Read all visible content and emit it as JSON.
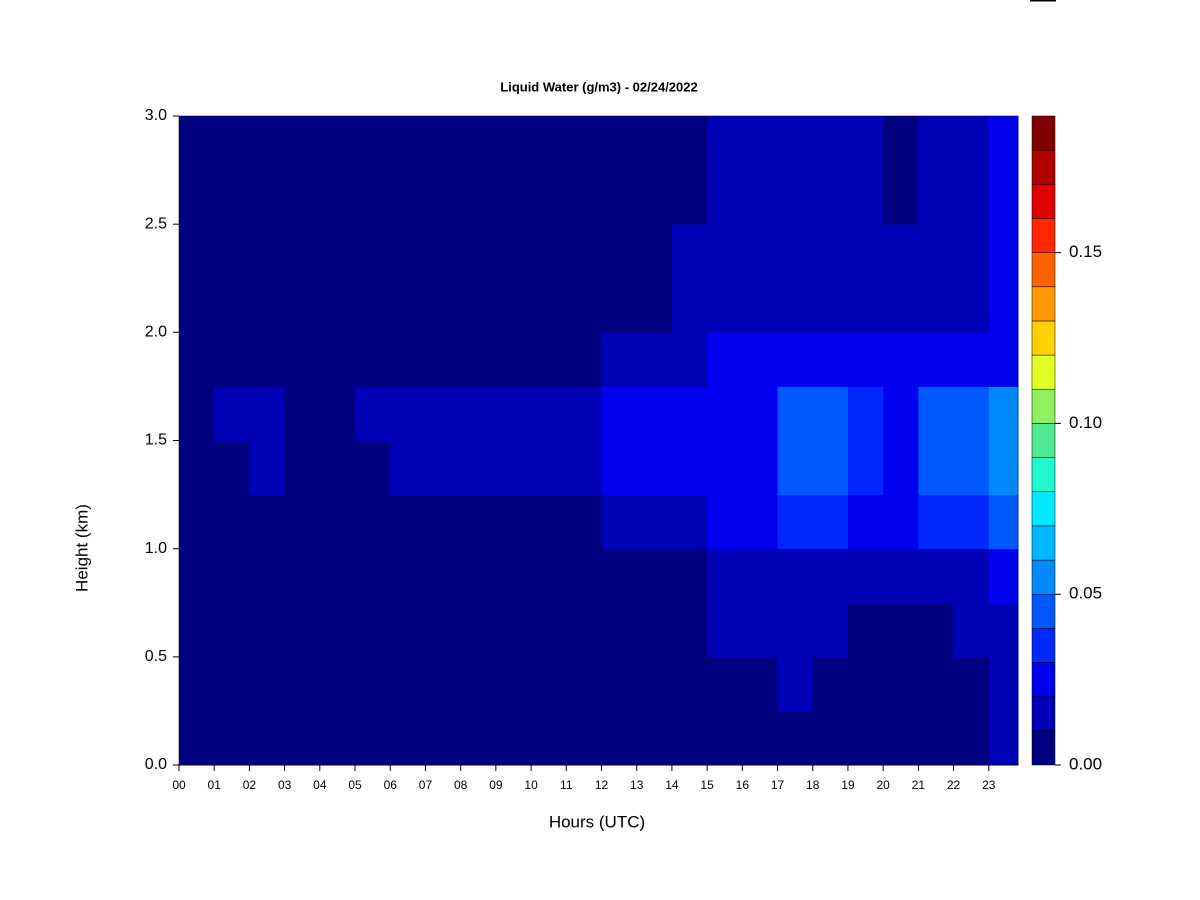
{
  "chart_data": {
    "type": "heatmap",
    "title": "Liquid Water (g/m3) - 02/24/2022",
    "x_label": "Hours (UTC)",
    "y_label": "Height (km)",
    "x": [
      0,
      1,
      2,
      3,
      4,
      5,
      6,
      7,
      8,
      9,
      10,
      11,
      12,
      13,
      14,
      15,
      16,
      17,
      18,
      19,
      20,
      21,
      22,
      23
    ],
    "y": [
      0,
      0.25,
      0.5,
      0.75,
      1,
      1.25,
      1.5,
      1.75,
      2,
      2.25,
      2.5,
      2.75
    ],
    "z": [
      [
        0,
        0,
        0,
        0,
        0,
        0,
        0,
        0,
        0,
        0,
        0,
        0,
        0,
        0,
        0,
        0,
        0,
        0,
        0,
        0,
        0,
        0,
        0,
        0.01
      ],
      [
        0,
        0,
        0,
        0,
        0,
        0,
        0,
        0,
        0,
        0,
        0,
        0,
        0,
        0,
        0,
        0,
        0,
        0.01,
        0,
        0,
        0,
        0,
        0,
        0.015
      ],
      [
        0,
        0,
        0,
        0,
        0,
        0,
        0,
        0,
        0,
        0,
        0,
        0,
        0,
        0,
        0,
        0.01,
        0.01,
        0.012,
        0.01,
        0,
        0,
        0,
        0.01,
        0.015
      ],
      [
        0,
        0,
        0,
        0,
        0,
        0,
        0,
        0,
        0,
        0,
        0,
        0,
        0.005,
        0.005,
        0.008,
        0.012,
        0.012,
        0.015,
        0.015,
        0.01,
        0.01,
        0.012,
        0.015,
        0.02
      ],
      [
        0,
        0,
        0,
        0,
        0,
        0,
        0,
        0,
        0,
        0,
        0,
        0,
        0.015,
        0.015,
        0.018,
        0.022,
        0.02,
        0.035,
        0.035,
        0.025,
        0.022,
        0.03,
        0.035,
        0.045
      ],
      [
        0,
        0.008,
        0.012,
        0.005,
        0.005,
        0.008,
        0.012,
        0.012,
        0.014,
        0.012,
        0.012,
        0.013,
        0.02,
        0.02,
        0.022,
        0.028,
        0.025,
        0.045,
        0.045,
        0.032,
        0.028,
        0.04,
        0.045,
        0.055
      ],
      [
        0,
        0.01,
        0.015,
        0.008,
        0.006,
        0.012,
        0.014,
        0.014,
        0.015,
        0.014,
        0.014,
        0.016,
        0.02,
        0.02,
        0.022,
        0.028,
        0.026,
        0.045,
        0.045,
        0.03,
        0.028,
        0.04,
        0.045,
        0.055
      ],
      [
        0,
        0,
        0,
        0,
        0,
        0,
        0,
        0,
        0,
        0,
        0,
        0,
        0.015,
        0.013,
        0.013,
        0.02,
        0.02,
        0.025,
        0.025,
        0.02,
        0.02,
        0.022,
        0.025,
        0.028
      ],
      [
        0,
        0,
        0,
        0,
        0,
        0,
        0,
        0,
        0,
        0,
        0,
        0,
        0.008,
        0.008,
        0.01,
        0.015,
        0.015,
        0.018,
        0.018,
        0.015,
        0.012,
        0.015,
        0.018,
        0.02
      ],
      [
        0,
        0,
        0,
        0,
        0,
        0,
        0,
        0,
        0,
        0,
        0,
        0,
        0,
        0.005,
        0.01,
        0.014,
        0.014,
        0.016,
        0.016,
        0.014,
        0.01,
        0.014,
        0.016,
        0.02
      ],
      [
        0,
        0,
        0,
        0,
        0,
        0,
        0,
        0,
        0,
        0,
        0,
        0,
        0,
        0,
        0.008,
        0.012,
        0.012,
        0.015,
        0.015,
        0.012,
        0.005,
        0.012,
        0.015,
        0.02
      ],
      [
        0,
        0,
        0,
        0,
        0,
        0,
        0,
        0,
        0,
        0,
        0,
        0,
        0,
        0,
        0.008,
        0.012,
        0.01,
        0.015,
        0.015,
        0.012,
        0.005,
        0.012,
        0.015,
        0.02
      ]
    ],
    "xlim": [
      0,
      23.83
    ],
    "ylim": [
      0,
      3
    ],
    "xticks": [
      {
        "value": 0,
        "label": "00"
      },
      {
        "value": 1,
        "label": "01"
      },
      {
        "value": 2,
        "label": "02"
      },
      {
        "value": 3,
        "label": "03"
      },
      {
        "value": 4,
        "label": "04"
      },
      {
        "value": 5,
        "label": "05"
      },
      {
        "value": 6,
        "label": "06"
      },
      {
        "value": 7,
        "label": "07"
      },
      {
        "value": 8,
        "label": "08"
      },
      {
        "value": 9,
        "label": "09"
      },
      {
        "value": 10,
        "label": "10"
      },
      {
        "value": 11,
        "label": "11"
      },
      {
        "value": 12,
        "label": "12"
      },
      {
        "value": 13,
        "label": "13"
      },
      {
        "value": 14,
        "label": "14"
      },
      {
        "value": 15,
        "label": "15"
      },
      {
        "value": 16,
        "label": "16"
      },
      {
        "value": 17,
        "label": "17"
      },
      {
        "value": 18,
        "label": "18"
      },
      {
        "value": 19,
        "label": "19"
      },
      {
        "value": 20,
        "label": "20"
      },
      {
        "value": 21,
        "label": "21"
      },
      {
        "value": 22,
        "label": "22"
      },
      {
        "value": 23,
        "label": "23"
      }
    ],
    "yticks": [
      {
        "value": 0,
        "label": "0.0"
      },
      0.5,
      {
        "value": 1,
        "label": "1.0"
      },
      1.5,
      {
        "value": 2,
        "label": "2.0"
      },
      2.5,
      {
        "value": 3,
        "label": "3.0"
      }
    ],
    "levels": [
      0,
      0.01,
      0.02,
      0.03,
      0.04,
      0.05,
      0.06,
      0.07,
      0.08,
      0.09,
      0.1,
      0.11,
      0.12,
      0.13,
      0.14,
      0.15,
      0.16,
      0.17,
      0.18,
      0.19
    ],
    "colors": [
      "#000080",
      "#0000B8",
      "#0000F0",
      "#0028FF",
      "#0058FF",
      "#0088FF",
      "#00B8FF",
      "#00E8FF",
      "#20F8D0",
      "#50E890",
      "#90F060",
      "#E0FF20",
      "#FFD000",
      "#FF9800",
      "#FF6000",
      "#FF2800",
      "#E00000",
      "#B00000",
      "#800000"
    ],
    "colorbar_ticks": [
      {
        "value": 0,
        "label": "0.00"
      },
      0.05,
      {
        "value": 0.1,
        "label": "0.10"
      },
      0.15
    ]
  }
}
